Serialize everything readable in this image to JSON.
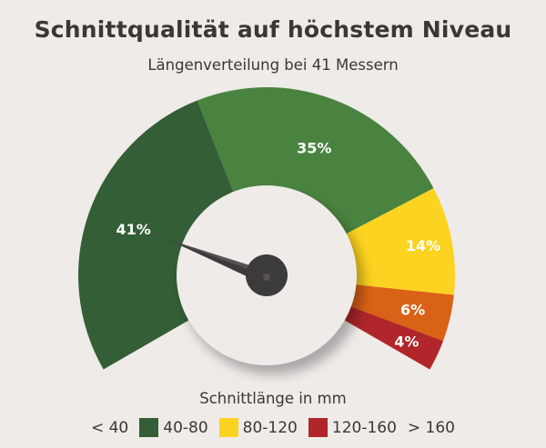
{
  "header": {
    "title": "Schnittqualität auf höchstem Niveau",
    "subtitle": "Längenverteilung bei 41 Messern"
  },
  "legend": {
    "title": "Schnittlänge in mm",
    "items": [
      {
        "label": "< 40",
        "color": "#345e36"
      },
      {
        "label": "40-80",
        "color": "#4a8340"
      },
      {
        "label": "80-120",
        "color": "#fdd321"
      },
      {
        "label": "120-160",
        "color": "#da6216"
      },
      {
        "label": "> 160",
        "color": "#b0262a"
      }
    ]
  },
  "chart_data": {
    "type": "gauge",
    "title": "Schnittqualität auf höchstem Niveau",
    "subtitle": "Längenverteilung bei 41 Messern",
    "xlabel": "Schnittlänge in mm",
    "categories": [
      "< 40",
      "40-80",
      "80-120",
      "120-160",
      "> 160"
    ],
    "values": [
      41,
      35,
      14,
      6,
      4
    ],
    "labels": [
      "41%",
      "35%",
      "14%",
      "6%",
      "4%"
    ],
    "colors": [
      "#345e36",
      "#4a8340",
      "#fdd321",
      "#da6216",
      "#b0262a"
    ],
    "needle_points_to": "< 40",
    "arc_degrees": 240
  }
}
